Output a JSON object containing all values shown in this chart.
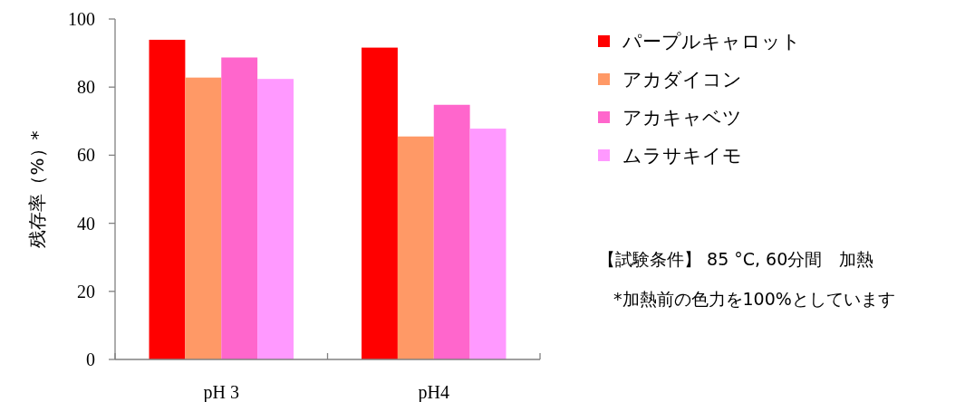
{
  "chart_data": {
    "type": "bar",
    "ylabel": "残存率（%）*",
    "categories": [
      "pH 3",
      "pH4"
    ],
    "series": [
      {
        "name": "パープルキャロット",
        "color": "#ff0000",
        "values": [
          93.9,
          91.6
        ]
      },
      {
        "name": "アカダイコン",
        "color": "#ff9966",
        "values": [
          82.8,
          65.5
        ]
      },
      {
        "name": "アカキャベツ",
        "color": "#ff66cc",
        "values": [
          88.7,
          74.8
        ]
      },
      {
        "name": "ムラサキイモ",
        "color": "#ff99ff",
        "values": [
          82.4,
          67.8
        ]
      }
    ],
    "ylim": [
      0,
      100
    ],
    "yticks": [
      0,
      20,
      40,
      60,
      80,
      100
    ],
    "grid": false,
    "legend": "right",
    "annotations": [
      "【試験条件】 85 °C, 60分間　加熱",
      "*加熱前の色力を100%としています"
    ]
  }
}
